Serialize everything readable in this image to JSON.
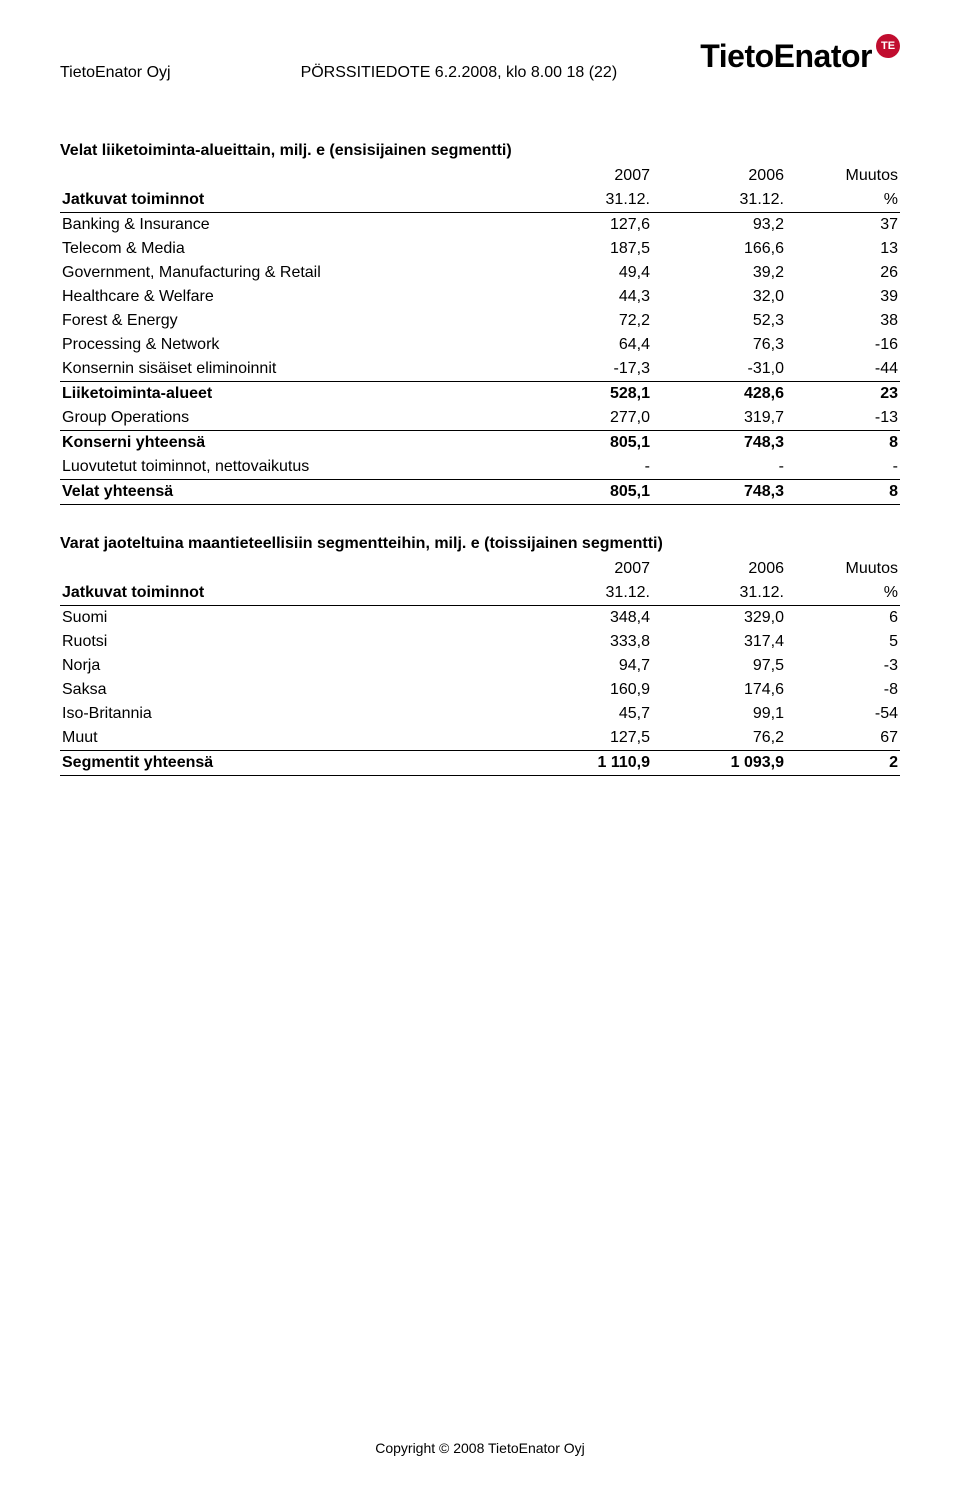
{
  "header": {
    "company": "TietoEnator Oyj",
    "doc_line": "PÖRSSITIEDOTE  6.2.2008, klo 8.00   18 (22)",
    "logo_text": "TietoEnator",
    "logo_badge": "TE",
    "badge_bg": "#c10d2f",
    "badge_fg": "#ffffff"
  },
  "table1": {
    "title": "Velat liiketoiminta-alueittain, milj. e (ensisijainen segmentti)",
    "col_headers": {
      "c1": "2007",
      "c2": "2006",
      "c3": "Muutos"
    },
    "sub_headers": {
      "label": "Jatkuvat toiminnot",
      "c1": "31.12.",
      "c2": "31.12.",
      "c3": "%"
    },
    "rows": [
      {
        "label": "Banking & Insurance",
        "c1": "127,6",
        "c2": "93,2",
        "c3": "37",
        "bold": false,
        "line": false
      },
      {
        "label": "Telecom & Media",
        "c1": "187,5",
        "c2": "166,6",
        "c3": "13",
        "bold": false,
        "line": false
      },
      {
        "label": "Government, Manufacturing & Retail",
        "c1": "49,4",
        "c2": "39,2",
        "c3": "26",
        "bold": false,
        "line": false
      },
      {
        "label": "Healthcare & Welfare",
        "c1": "44,3",
        "c2": "32,0",
        "c3": "39",
        "bold": false,
        "line": false
      },
      {
        "label": "Forest & Energy",
        "c1": "72,2",
        "c2": "52,3",
        "c3": "38",
        "bold": false,
        "line": false
      },
      {
        "label": "Processing & Network",
        "c1": "64,4",
        "c2": "76,3",
        "c3": "-16",
        "bold": false,
        "line": false
      },
      {
        "label": "Konsernin sisäiset eliminoinnit",
        "c1": "-17,3",
        "c2": "-31,0",
        "c3": "-44",
        "bold": false,
        "line": true
      },
      {
        "label": "Liiketoiminta-alueet",
        "c1": "528,1",
        "c2": "428,6",
        "c3": "23",
        "bold": true,
        "line": false
      },
      {
        "label": "Group Operations",
        "c1": "277,0",
        "c2": "319,7",
        "c3": "-13",
        "bold": false,
        "line": true
      },
      {
        "label": "Konserni yhteensä",
        "c1": "805,1",
        "c2": "748,3",
        "c3": "8",
        "bold": true,
        "line": false
      },
      {
        "label": "Luovutetut toiminnot, nettovaikutus",
        "c1": "-",
        "c2": "-",
        "c3": "-",
        "bold": false,
        "line": true
      },
      {
        "label": "Velat yhteensä",
        "c1": "805,1",
        "c2": "748,3",
        "c3": "8",
        "bold": true,
        "line": true
      }
    ]
  },
  "table2": {
    "title": "Varat jaoteltuina maantieteellisiin segmentteihin, milj. e (toissijainen segmentti)",
    "col_headers": {
      "c1": "2007",
      "c2": "2006",
      "c3": "Muutos"
    },
    "sub_headers": {
      "label": "Jatkuvat toiminnot",
      "c1": "31.12.",
      "c2": "31.12.",
      "c3": "%"
    },
    "rows": [
      {
        "label": "Suomi",
        "c1": "348,4",
        "c2": "329,0",
        "c3": "6",
        "bold": false,
        "line": false
      },
      {
        "label": "Ruotsi",
        "c1": "333,8",
        "c2": "317,4",
        "c3": "5",
        "bold": false,
        "line": false
      },
      {
        "label": "Norja",
        "c1": "94,7",
        "c2": "97,5",
        "c3": "-3",
        "bold": false,
        "line": false
      },
      {
        "label": "Saksa",
        "c1": "160,9",
        "c2": "174,6",
        "c3": "-8",
        "bold": false,
        "line": false
      },
      {
        "label": "Iso-Britannia",
        "c1": "45,7",
        "c2": "99,1",
        "c3": "-54",
        "bold": false,
        "line": false
      },
      {
        "label": "Muut",
        "c1": "127,5",
        "c2": "76,2",
        "c3": "67",
        "bold": false,
        "line": true
      },
      {
        "label": "Segmentit yhteensä",
        "c1": "1 110,9",
        "c2": "1 093,9",
        "c3": "2",
        "bold": true,
        "line": true
      }
    ]
  },
  "footer": "Copyright © 2008 TietoEnator Oyj"
}
